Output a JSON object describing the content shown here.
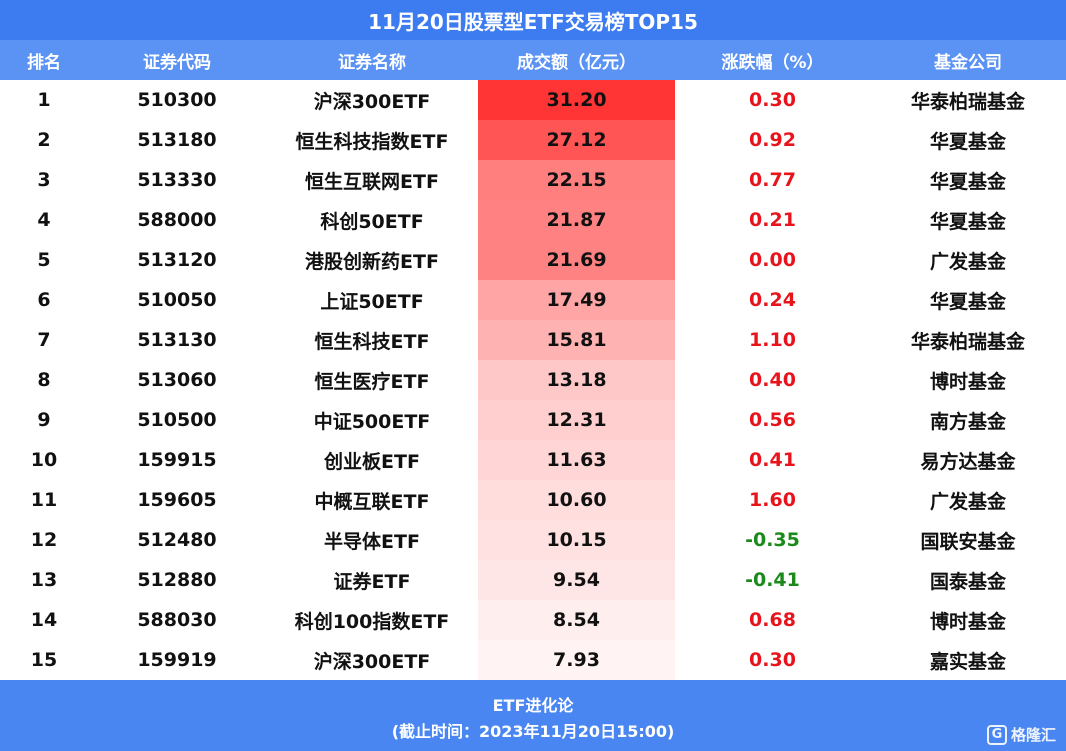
{
  "title": "11月20日股票型ETF交易榜TOP15",
  "headers": {
    "rank": "排名",
    "code": "证券代码",
    "name": "证券名称",
    "volume": "成交额（亿元）",
    "change": "涨跌幅（%）",
    "company": "基金公司"
  },
  "rows": [
    {
      "rank": "1",
      "code": "510300",
      "name": "沪深300ETF",
      "volume": "31.20",
      "change": "0.30",
      "company": "华泰柏瑞基金"
    },
    {
      "rank": "2",
      "code": "513180",
      "name": "恒生科技指数ETF",
      "volume": "27.12",
      "change": "0.92",
      "company": "华夏基金"
    },
    {
      "rank": "3",
      "code": "513330",
      "name": "恒生互联网ETF",
      "volume": "22.15",
      "change": "0.77",
      "company": "华夏基金"
    },
    {
      "rank": "4",
      "code": "588000",
      "name": "科创50ETF",
      "volume": "21.87",
      "change": "0.21",
      "company": "华夏基金"
    },
    {
      "rank": "5",
      "code": "513120",
      "name": "港股创新药ETF",
      "volume": "21.69",
      "change": "0.00",
      "company": "广发基金"
    },
    {
      "rank": "6",
      "code": "510050",
      "name": "上证50ETF",
      "volume": "17.49",
      "change": "0.24",
      "company": "华夏基金"
    },
    {
      "rank": "7",
      "code": "513130",
      "name": "恒生科技ETF",
      "volume": "15.81",
      "change": "1.10",
      "company": "华泰柏瑞基金"
    },
    {
      "rank": "8",
      "code": "513060",
      "name": "恒生医疗ETF",
      "volume": "13.18",
      "change": "0.40",
      "company": "博时基金"
    },
    {
      "rank": "9",
      "code": "510500",
      "name": "中证500ETF",
      "volume": "12.31",
      "change": "0.56",
      "company": "南方基金"
    },
    {
      "rank": "10",
      "code": "159915",
      "name": "创业板ETF",
      "volume": "11.63",
      "change": "0.41",
      "company": "易方达基金"
    },
    {
      "rank": "11",
      "code": "159605",
      "name": "中概互联ETF",
      "volume": "10.60",
      "change": "1.60",
      "company": "广发基金"
    },
    {
      "rank": "12",
      "code": "512480",
      "name": "半导体ETF",
      "volume": "10.15",
      "change": "-0.35",
      "company": "国联安基金"
    },
    {
      "rank": "13",
      "code": "512880",
      "name": "证券ETF",
      "volume": "9.54",
      "change": "-0.41",
      "company": "国泰基金"
    },
    {
      "rank": "14",
      "code": "588030",
      "name": "科创100指数ETF",
      "volume": "8.54",
      "change": "0.68",
      "company": "博时基金"
    },
    {
      "rank": "15",
      "code": "159919",
      "name": "沪深300ETF",
      "volume": "7.93",
      "change": "0.30",
      "company": "嘉实基金"
    }
  ],
  "footer": {
    "line1": "ETF进化论",
    "line2": "(截止时间：2023年11月20日15:00)"
  },
  "logo": {
    "icon": "g-logo-icon",
    "text": "格隆汇"
  },
  "colors": {
    "title_bg": "#3d7cf0",
    "header_bg": "#5b93f5",
    "footer_bg": "#4a86f2",
    "heat_max": "#ff3030",
    "positive": "#e8141c",
    "negative": "#1a8a1a"
  }
}
